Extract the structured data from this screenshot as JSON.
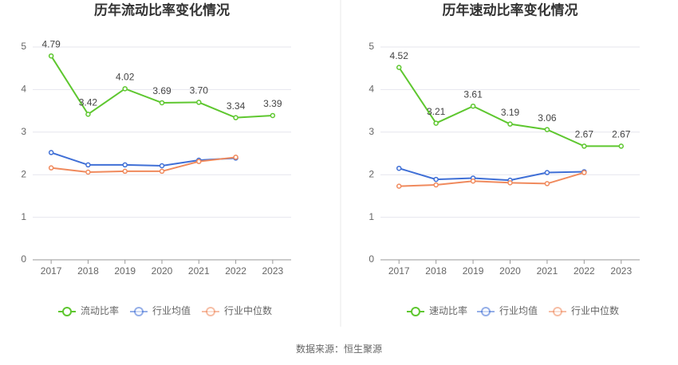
{
  "chart_data": [
    {
      "type": "line",
      "title": "历年流动比率变化情况",
      "categories": [
        "2017",
        "2018",
        "2019",
        "2020",
        "2021",
        "2022",
        "2023"
      ],
      "series": [
        {
          "name": "流动比率",
          "color": "#5ec72f",
          "values": [
            4.79,
            3.42,
            4.02,
            3.69,
            3.7,
            3.34,
            3.39
          ],
          "value_labels": [
            "4.79",
            "3.42",
            "4.02",
            "3.69",
            "3.70",
            "3.34",
            "3.39"
          ]
        },
        {
          "name": "行业均值",
          "color": "#3f6fd6",
          "values": [
            2.52,
            2.23,
            2.23,
            2.21,
            2.34,
            2.39,
            null
          ]
        },
        {
          "name": "行业中位数",
          "color": "#f08a5d",
          "values": [
            2.16,
            2.06,
            2.08,
            2.08,
            2.31,
            2.41,
            null
          ]
        }
      ],
      "ylim": [
        0,
        5
      ],
      "yticks": [
        0,
        1,
        2,
        3,
        4,
        5
      ],
      "grid": true
    },
    {
      "type": "line",
      "title": "历年速动比率变化情况",
      "categories": [
        "2017",
        "2018",
        "2019",
        "2020",
        "2021",
        "2022",
        "2023"
      ],
      "series": [
        {
          "name": "速动比率",
          "color": "#5ec72f",
          "values": [
            4.52,
            3.21,
            3.61,
            3.19,
            3.06,
            2.67,
            2.67
          ],
          "value_labels": [
            "4.52",
            "3.21",
            "3.61",
            "3.19",
            "3.06",
            "2.67",
            "2.67"
          ]
        },
        {
          "name": "行业均值",
          "color": "#3f6fd6",
          "values": [
            2.15,
            1.89,
            1.92,
            1.87,
            2.05,
            2.07,
            null
          ]
        },
        {
          "name": "行业中位数",
          "color": "#f08a5d",
          "values": [
            1.73,
            1.76,
            1.85,
            1.81,
            1.79,
            2.05,
            null
          ]
        }
      ],
      "ylim": [
        0,
        5
      ],
      "yticks": [
        0,
        1,
        2,
        3,
        4,
        5
      ],
      "grid": true
    }
  ],
  "source": "数据来源：恒生聚源"
}
